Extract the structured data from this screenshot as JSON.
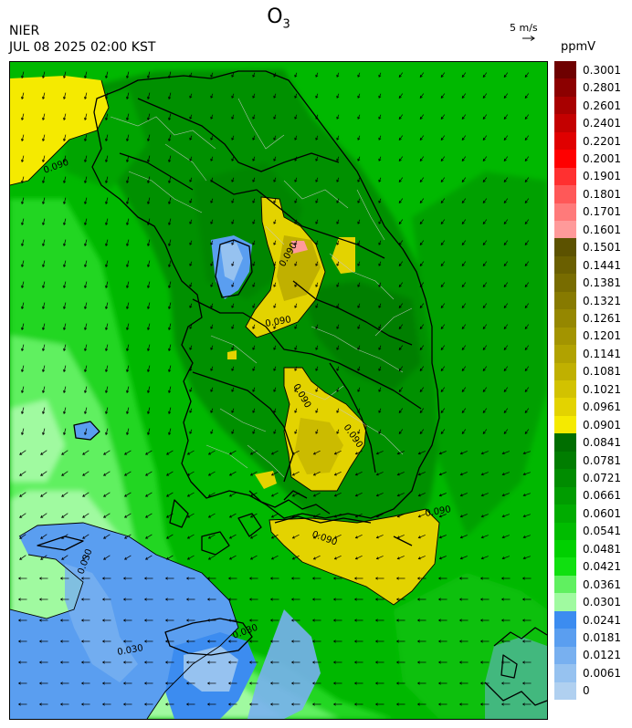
{
  "header": {
    "title": "O",
    "title_sub": "3",
    "org": "NIER",
    "timestamp": "JUL 08 2025 02:00 KST",
    "wind_reference": "5 m/s",
    "unit": "ppmV"
  },
  "legend": [
    {
      "label": "0.3001",
      "color": "#6e0000"
    },
    {
      "label": "0.2801",
      "color": "#8c0000"
    },
    {
      "label": "0.2601",
      "color": "#a80000"
    },
    {
      "label": "0.2401",
      "color": "#c40000"
    },
    {
      "label": "0.2201",
      "color": "#e00000"
    },
    {
      "label": "0.2001",
      "color": "#ff0000"
    },
    {
      "label": "0.1901",
      "color": "#ff3030"
    },
    {
      "label": "0.1801",
      "color": "#ff5858"
    },
    {
      "label": "0.1701",
      "color": "#ff7a7a"
    },
    {
      "label": "0.1601",
      "color": "#ff9a9a"
    },
    {
      "label": "0.1501",
      "color": "#5c5200"
    },
    {
      "label": "0.1441",
      "color": "#6a5f00"
    },
    {
      "label": "0.1381",
      "color": "#786c00"
    },
    {
      "label": "0.1321",
      "color": "#877a00"
    },
    {
      "label": "0.1261",
      "color": "#958700"
    },
    {
      "label": "0.1201",
      "color": "#a39400"
    },
    {
      "label": "0.1141",
      "color": "#b1a200"
    },
    {
      "label": "0.1081",
      "color": "#c0b000"
    },
    {
      "label": "0.1021",
      "color": "#d2c200"
    },
    {
      "label": "0.0961",
      "color": "#e3d300"
    },
    {
      "label": "0.0901",
      "color": "#f5ea00"
    },
    {
      "label": "0.0841",
      "color": "#006e00"
    },
    {
      "label": "0.0781",
      "color": "#007d00"
    },
    {
      "label": "0.0721",
      "color": "#008c00"
    },
    {
      "label": "0.0661",
      "color": "#009c00"
    },
    {
      "label": "0.0601",
      "color": "#00ac00"
    },
    {
      "label": "0.0541",
      "color": "#00bc00"
    },
    {
      "label": "0.0481",
      "color": "#00d000"
    },
    {
      "label": "0.0421",
      "color": "#10e010"
    },
    {
      "label": "0.0361",
      "color": "#60f060"
    },
    {
      "label": "0.0301",
      "color": "#a0faa0"
    },
    {
      "label": "0.0241",
      "color": "#3c8cf0"
    },
    {
      "label": "0.0181",
      "color": "#5a9ef0"
    },
    {
      "label": "0.0121",
      "color": "#78b0f0"
    },
    {
      "label": "0.0061",
      "color": "#96c2f0"
    },
    {
      "label": "0",
      "color": "#b0d0f0"
    }
  ],
  "map": {
    "contour_labels": [
      "0.090",
      "0.090",
      "0.090",
      "0.090",
      "0.090",
      "0.090",
      "0.030",
      "0.030",
      "0.030",
      "0.090"
    ]
  }
}
